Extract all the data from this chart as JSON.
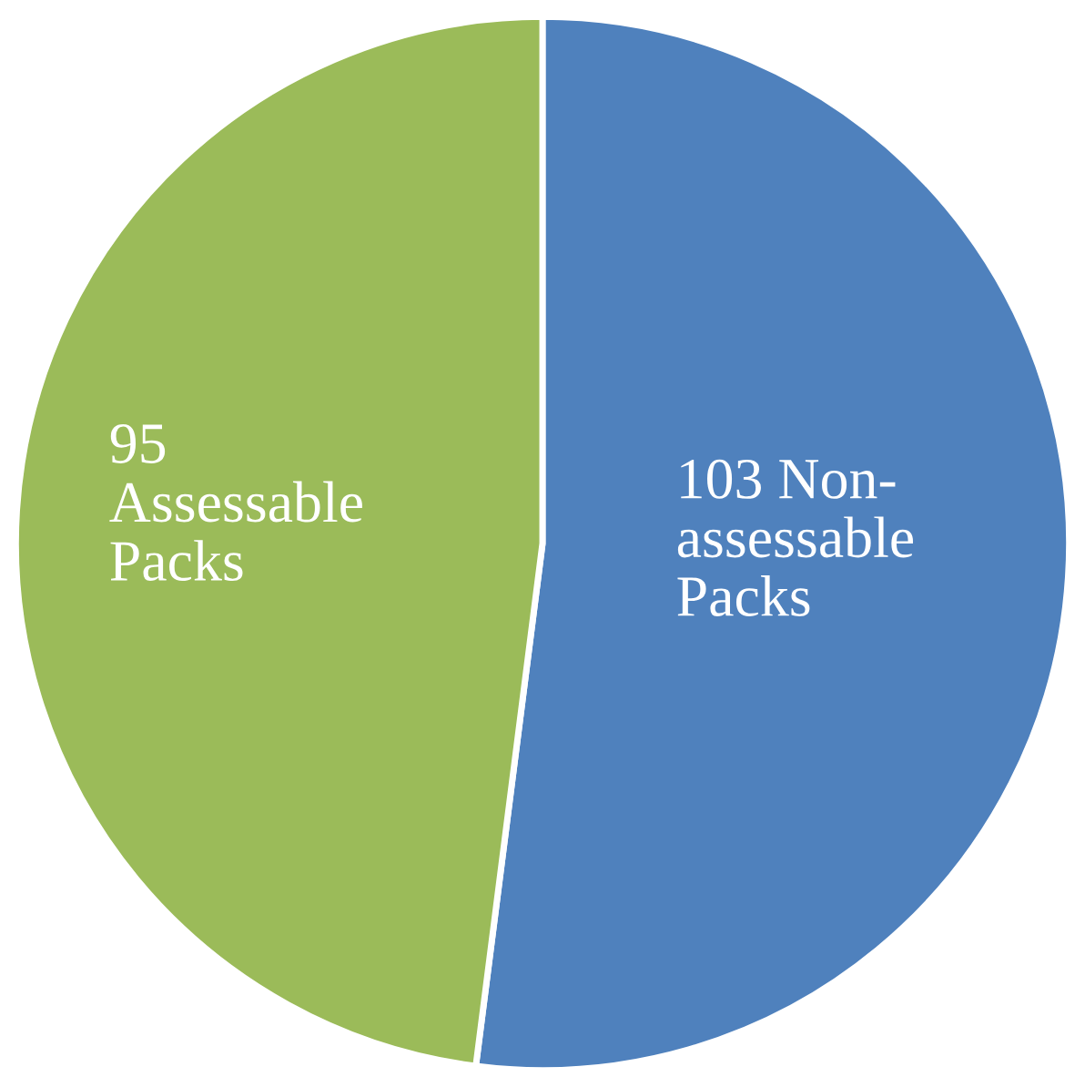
{
  "chart_data": {
    "type": "pie",
    "categories": [
      "Non-assessable Packs",
      "Assessable Packs"
    ],
    "values": [
      103,
      95
    ],
    "colors": [
      "#4f81bd",
      "#9bbb59"
    ],
    "data_labels": true
  }
}
